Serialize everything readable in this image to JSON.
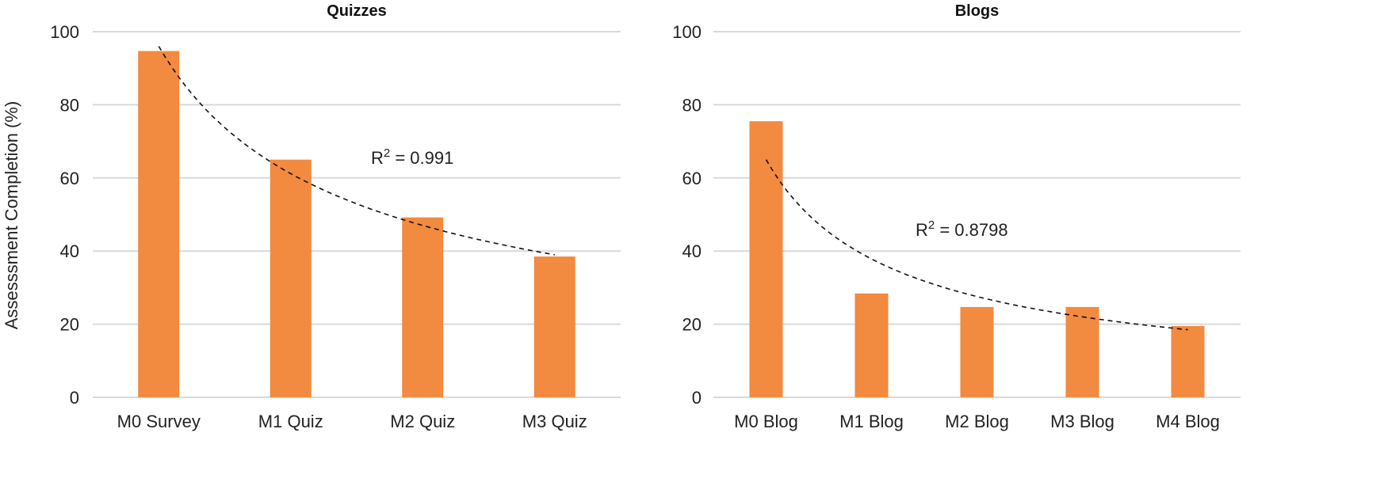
{
  "chart_data": [
    {
      "type": "bar",
      "title": "Quizzes",
      "xlabel": "",
      "ylabel": "Assesssment Completion (%)",
      "ylim": [
        0,
        100
      ],
      "yticks": [
        0,
        20,
        40,
        60,
        80,
        100
      ],
      "grid": true,
      "categories": [
        "M0 Survey",
        "M1 Quiz",
        "M2 Quiz",
        "M3 Quiz"
      ],
      "values": [
        94.7,
        65.0,
        49.2,
        38.5
      ],
      "bar_color": "#F28A3F",
      "trendline": {
        "type": "power",
        "a": 96,
        "b": -0.65,
        "r2_label": "R",
        "r2_sup": "2",
        "r2_value": " = 0.991"
      }
    },
    {
      "type": "bar",
      "title": "Blogs",
      "xlabel": "",
      "ylabel": "",
      "ylim": [
        0,
        100
      ],
      "yticks": [
        0,
        20,
        40,
        60,
        80,
        100
      ],
      "grid": true,
      "categories": [
        "M0 Blog",
        "M1 Blog",
        "M2 Blog",
        "M3 Blog",
        "M4 Blog"
      ],
      "values": [
        75.5,
        28.4,
        24.7,
        24.7,
        19.5
      ],
      "bar_color": "#F28A3F",
      "trendline": {
        "type": "power",
        "a": 65,
        "b": -0.781,
        "r2_label": "R",
        "r2_sup": "2",
        "r2_value": " = 0.8798"
      }
    }
  ]
}
